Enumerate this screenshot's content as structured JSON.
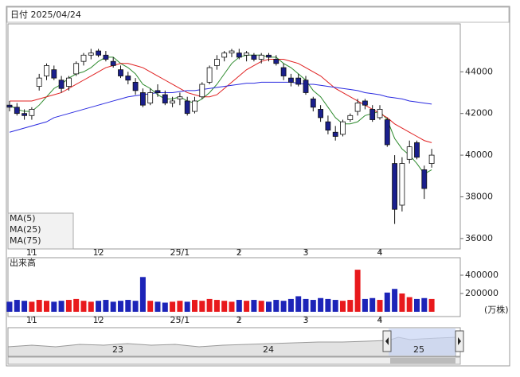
{
  "chart_data": {
    "type": "candlestick",
    "title": "日付 2025/04/24",
    "categories": [
      null,
      null,
      null,
      "11",
      null,
      null,
      null,
      null,
      null,
      null,
      null,
      null,
      "12",
      null,
      null,
      null,
      null,
      null,
      null,
      null,
      null,
      null,
      null,
      "25/1",
      null,
      null,
      null,
      null,
      null,
      null,
      null,
      "2",
      null,
      null,
      null,
      null,
      null,
      null,
      null,
      null,
      "3",
      null,
      null,
      null,
      null,
      null,
      null,
      null,
      null,
      null,
      "4",
      null,
      null,
      null,
      null,
      null,
      null,
      null
    ],
    "ohlc": [
      [
        42400,
        42600,
        42100,
        42300
      ],
      [
        42300,
        42500,
        41900,
        42000
      ],
      [
        42000,
        42200,
        41700,
        41900
      ],
      [
        41900,
        42300,
        41700,
        42200
      ],
      [
        43300,
        43900,
        43100,
        43700
      ],
      [
        43800,
        44400,
        43600,
        44300
      ],
      [
        44100,
        44300,
        43600,
        43700
      ],
      [
        43600,
        43800,
        43000,
        43200
      ],
      [
        43300,
        43800,
        43100,
        43700
      ],
      [
        43900,
        44500,
        43800,
        44400
      ],
      [
        44500,
        44900,
        44300,
        44800
      ],
      [
        44800,
        45100,
        44600,
        44900
      ],
      [
        45000,
        45100,
        44700,
        44800
      ],
      [
        44800,
        45000,
        44500,
        44600
      ],
      [
        44500,
        44700,
        44200,
        44300
      ],
      [
        44100,
        44300,
        43700,
        43800
      ],
      [
        43800,
        44000,
        43400,
        43600
      ],
      [
        43500,
        43700,
        42900,
        43100
      ],
      [
        43000,
        43200,
        42300,
        42400
      ],
      [
        42500,
        43200,
        42400,
        43000
      ],
      [
        43100,
        43400,
        42800,
        43000
      ],
      [
        42900,
        43100,
        42400,
        42500
      ],
      [
        42500,
        42800,
        42300,
        42600
      ],
      [
        42700,
        43000,
        42400,
        42800
      ],
      [
        42600,
        42800,
        41900,
        42000
      ],
      [
        42100,
        42800,
        42000,
        42600
      ],
      [
        42800,
        43500,
        42700,
        43400
      ],
      [
        43500,
        44300,
        43400,
        44200
      ],
      [
        44300,
        44800,
        44100,
        44600
      ],
      [
        44700,
        45000,
        44500,
        44900
      ],
      [
        44900,
        45100,
        44700,
        45000
      ],
      [
        44900,
        45100,
        44600,
        44700
      ],
      [
        44800,
        45000,
        44500,
        44900
      ],
      [
        44800,
        44900,
        44500,
        44600
      ],
      [
        44600,
        44900,
        44400,
        44800
      ],
      [
        44800,
        44900,
        44500,
        44700
      ],
      [
        44600,
        44800,
        44300,
        44400
      ],
      [
        44200,
        44400,
        43600,
        43800
      ],
      [
        43700,
        43900,
        43300,
        43500
      ],
      [
        43700,
        43900,
        43300,
        43400
      ],
      [
        43600,
        43800,
        42900,
        43000
      ],
      [
        42700,
        42800,
        42100,
        42300
      ],
      [
        42200,
        42400,
        41600,
        41800
      ],
      [
        41600,
        41900,
        41000,
        41200
      ],
      [
        41100,
        41400,
        40700,
        40900
      ],
      [
        41000,
        41700,
        40900,
        41600
      ],
      [
        41700,
        42000,
        41600,
        41900
      ],
      [
        42100,
        42700,
        41900,
        42500
      ],
      [
        42600,
        42700,
        42200,
        42400
      ],
      [
        42200,
        42400,
        41600,
        41700
      ],
      [
        41800,
        42400,
        41700,
        42200
      ],
      [
        41700,
        41800,
        40400,
        40500
      ],
      [
        39600,
        40000,
        36700,
        37400
      ],
      [
        37600,
        39900,
        37300,
        39600
      ],
      [
        39800,
        40700,
        39600,
        40400
      ],
      [
        40600,
        40700,
        39800,
        39900
      ],
      [
        39300,
        39500,
        37900,
        38400
      ],
      [
        39600,
        40300,
        39400,
        40000
      ]
    ],
    "candle_up_color": "#ffffff",
    "candle_down_color": "#1a1f8c",
    "series": [
      {
        "name": "MA(5)",
        "color": "#2e8b2e",
        "values": [
          42400,
          42200,
          42100,
          42100,
          42400,
          42800,
          43200,
          43400,
          43700,
          43900,
          44000,
          44200,
          44500,
          44700,
          44700,
          44400,
          44200,
          43900,
          43400,
          43200,
          42900,
          42700,
          42700,
          42800,
          42600,
          42500,
          42700,
          43000,
          43400,
          43900,
          44400,
          44700,
          44800,
          44800,
          44800,
          44700,
          44700,
          44400,
          44200,
          43900,
          43600,
          43100,
          42800,
          42300,
          41800,
          41500,
          41500,
          41600,
          41900,
          42000,
          42100,
          41700,
          40800,
          40300,
          40000,
          39600,
          39100,
          39300
        ]
      },
      {
        "name": "MA(25)",
        "color": "#e02020",
        "values": [
          42600,
          42600,
          42600,
          42600,
          42700,
          42800,
          42900,
          43000,
          43200,
          43400,
          43600,
          43800,
          44000,
          44200,
          44300,
          44400,
          44400,
          44300,
          44200,
          44000,
          43800,
          43600,
          43400,
          43200,
          43000,
          42900,
          42800,
          42800,
          42900,
          43200,
          43500,
          43800,
          44100,
          44300,
          44500,
          44600,
          44600,
          44600,
          44500,
          44400,
          44200,
          44000,
          43800,
          43500,
          43200,
          43000,
          42800,
          42600,
          42400,
          42200,
          42000,
          41800,
          41500,
          41300,
          41100,
          40900,
          40700,
          40600
        ]
      },
      {
        "name": "MA(75)",
        "color": "#2a2ae0",
        "values": [
          41100,
          41200,
          41300,
          41400,
          41500,
          41600,
          41800,
          41900,
          42000,
          42100,
          42200,
          42300,
          42400,
          42500,
          42600,
          42700,
          42800,
          42850,
          42900,
          42950,
          43000,
          43000,
          43000,
          43050,
          43100,
          43100,
          43150,
          43200,
          43250,
          43300,
          43350,
          43400,
          43450,
          43450,
          43500,
          43500,
          43500,
          43500,
          43500,
          43450,
          43400,
          43400,
          43350,
          43300,
          43250,
          43200,
          43150,
          43100,
          43000,
          42950,
          42900,
          42800,
          42750,
          42700,
          42600,
          42550,
          42500,
          42450
        ]
      }
    ],
    "ylim": [
      35500,
      46300
    ],
    "yticks": [
      36000,
      38000,
      40000,
      42000,
      44000
    ],
    "volume": {
      "title": "出来高",
      "unit": "(万株)",
      "up_color": "#e8191c",
      "down_color": "#1c24b8",
      "ylim": [
        0,
        574000
      ],
      "yticks": [
        200000,
        400000
      ],
      "values": [
        110000,
        130000,
        120000,
        110000,
        130000,
        120000,
        110000,
        120000,
        130000,
        140000,
        120000,
        110000,
        120000,
        130000,
        110000,
        120000,
        130000,
        120000,
        380000,
        120000,
        110000,
        100000,
        110000,
        120000,
        110000,
        130000,
        120000,
        140000,
        130000,
        120000,
        110000,
        130000,
        120000,
        130000,
        120000,
        110000,
        130000,
        120000,
        140000,
        170000,
        140000,
        130000,
        150000,
        140000,
        130000,
        120000,
        130000,
        460000,
        140000,
        150000,
        130000,
        210000,
        250000,
        200000,
        160000,
        140000,
        150000,
        140000
      ]
    },
    "navigator": {
      "labels": [
        "23",
        "24",
        "25"
      ]
    }
  }
}
